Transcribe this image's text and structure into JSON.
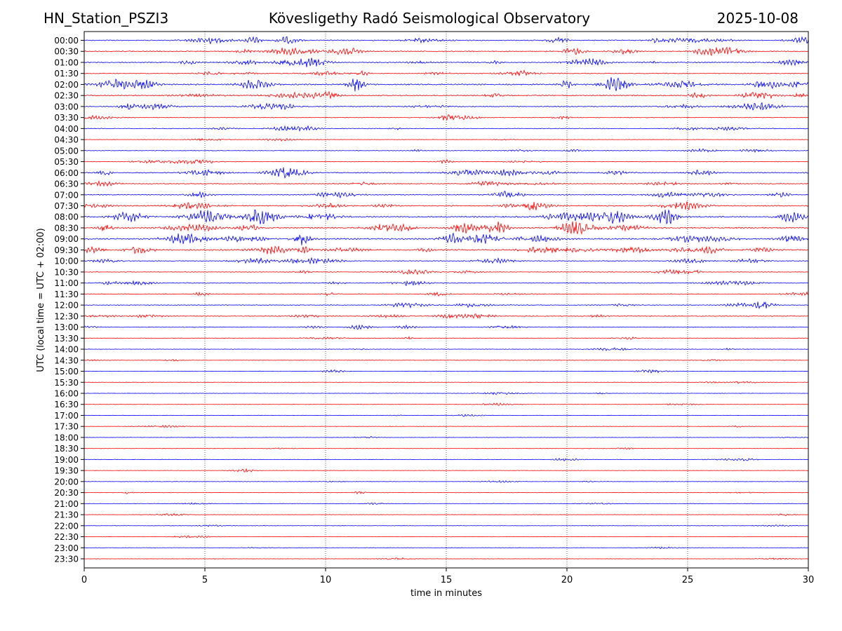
{
  "header": {
    "station": "HN_Station_PSZI3",
    "observatory": "Kövesligethy Radó Seismological Observatory",
    "date": "2025-10-08"
  },
  "chart_data": {
    "type": "line",
    "title": "Kövesligethy Radó Seismological Observatory",
    "xlabel": "time in minutes",
    "ylabel": "UTC (local time = UTC + 02:00)",
    "xlim": [
      0,
      30
    ],
    "x_ticks": [
      0,
      5,
      10,
      15,
      20,
      25,
      30
    ],
    "grid": "vertical dotted lines at each x tick",
    "row_labels": [
      "00:00",
      "00:30",
      "01:00",
      "01:30",
      "02:00",
      "02:30",
      "03:00",
      "03:30",
      "04:00",
      "04:30",
      "05:00",
      "05:30",
      "06:00",
      "06:30",
      "07:00",
      "07:30",
      "08:00",
      "08:30",
      "09:00",
      "09:30",
      "10:00",
      "10:30",
      "11:00",
      "11:30",
      "12:00",
      "12:30",
      "13:00",
      "13:30",
      "14:00",
      "14:30",
      "15:00",
      "15:30",
      "16:00",
      "16:30",
      "17:00",
      "17:30",
      "18:00",
      "18:30",
      "19:00",
      "19:30",
      "20:00",
      "20:30",
      "21:00",
      "21:30",
      "22:00",
      "22:30",
      "23:00",
      "23:30"
    ],
    "row_colors": [
      "#0000ff",
      "#ff0000"
    ],
    "activity": [
      0.55,
      0.6,
      0.55,
      0.45,
      0.8,
      0.6,
      0.5,
      0.3,
      0.35,
      0.15,
      0.25,
      0.25,
      0.55,
      0.45,
      0.45,
      0.6,
      0.85,
      0.8,
      0.8,
      0.75,
      0.4,
      0.3,
      0.35,
      0.3,
      0.35,
      0.4,
      0.3,
      0.15,
      0.15,
      0.15,
      0.15,
      0.1,
      0.1,
      0.1,
      0.1,
      0.1,
      0.1,
      0.1,
      0.15,
      0.1,
      0.12,
      0.12,
      0.12,
      0.1,
      0.1,
      0.1,
      0.08,
      0.08
    ]
  }
}
